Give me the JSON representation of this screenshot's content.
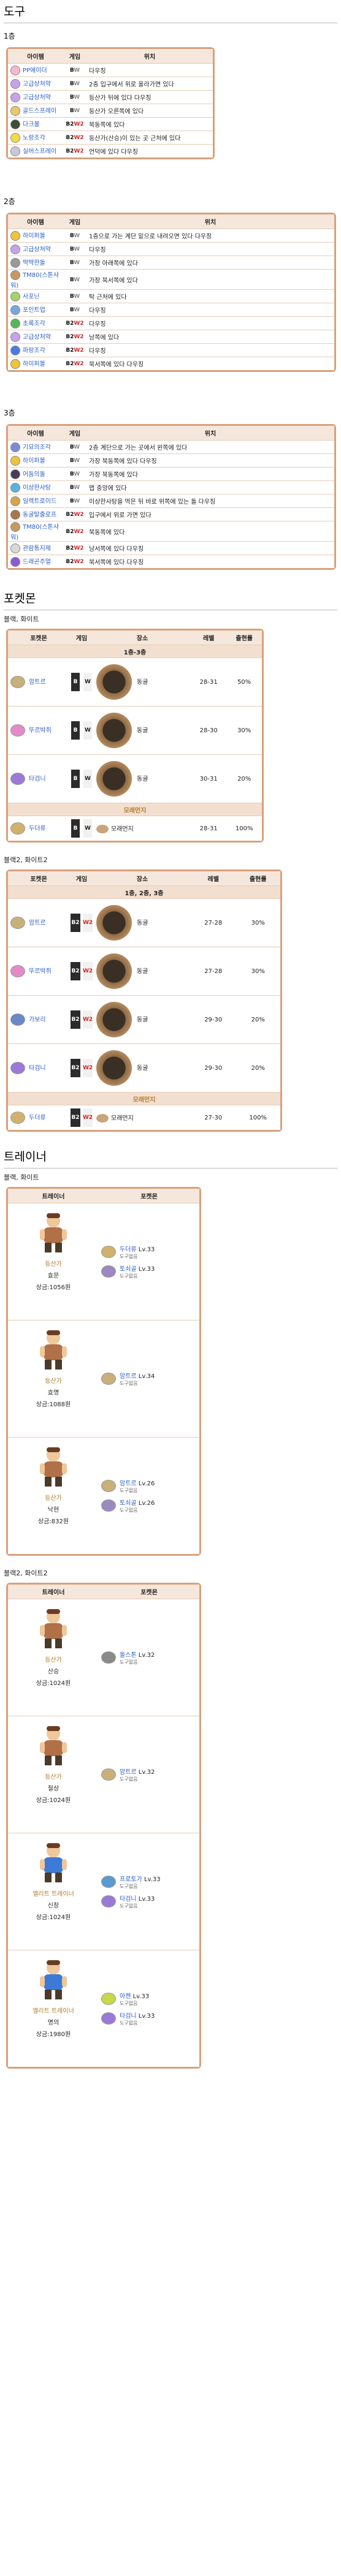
{
  "sections": {
    "items_title": "도구",
    "floor1": "1층",
    "floor2": "2층",
    "floor3": "3층",
    "pokemon_title": "포켓몬",
    "trainer_title": "트레이너",
    "bw": "블랙, 화이트",
    "bw2": "블랙2, 화이트2"
  },
  "item_headers": [
    "아이템",
    "게임",
    "위치"
  ],
  "floor1_items": [
    {
      "name": "PP에이더",
      "icon": "#f7b8d1",
      "games": "BW",
      "loc": "다우징",
      "loc_italic": true
    },
    {
      "name": "고급상처약",
      "icon": "#c7a3e8",
      "games": "BW",
      "loc": "2층 입구에서 위로 올라가면 있다",
      "loc_italic": false
    },
    {
      "name": "고급상처약",
      "icon": "#c7a3e8",
      "games": "BW",
      "loc": "등산가 뒤에 있다 다우징",
      "loc_italic": false
    },
    {
      "name": "골드스프레이",
      "icon": "#e7c86b",
      "games": "BW",
      "loc": "등산가 오른쪽에 있다",
      "loc_italic": false
    },
    {
      "name": "다크볼",
      "icon": "#3f4d3a",
      "games": "B2W2",
      "loc": "북동쪽에 있다",
      "loc_italic": false
    },
    {
      "name": "노랑조각",
      "icon": "#f2dc45",
      "games": "B2W2",
      "loc": "등산가(산승)이 있는 곳 근처에 있다",
      "loc_italic": false
    },
    {
      "name": "실버스프레이",
      "icon": "#c8c8d8",
      "games": "B2W2",
      "loc": "언덕에 있다 다우징",
      "loc_italic": false
    }
  ],
  "floor2_items": [
    {
      "name": "하이퍼볼",
      "icon": "#f1c33b",
      "games": "BW",
      "loc": "1층으로 가는 계단 밑으로 내려오면 있다 다우징"
    },
    {
      "name": "고급상처약",
      "icon": "#c7a3e8",
      "games": "BW",
      "loc": "다우징"
    },
    {
      "name": "딱딱한돌",
      "icon": "#9a9a9a",
      "games": "BW",
      "loc": "가장 아래쪽에 있다"
    },
    {
      "name": "TM80(스톤샤워)",
      "icon": "#c59a61",
      "games": "BW",
      "loc": "가장 북서쪽에 있다"
    },
    {
      "name": "사포닌",
      "icon": "#a3d36a",
      "games": "BW",
      "loc": "탁 근처에 있다"
    },
    {
      "name": "포인트업",
      "icon": "#7aa6e0",
      "games": "BW",
      "loc": "다우징"
    },
    {
      "name": "초록조각",
      "icon": "#56b75a",
      "games": "B2W2",
      "loc": "다우징"
    },
    {
      "name": "고급상처약",
      "icon": "#c7a3e8",
      "games": "B2W2",
      "loc": "남쪽에 있다"
    },
    {
      "name": "파랑조각",
      "icon": "#4a7be0",
      "games": "B2W2",
      "loc": "다우징"
    },
    {
      "name": "하이퍼볼",
      "icon": "#f1c33b",
      "games": "B2W2",
      "loc": "북서쪽에 있다 다우징"
    }
  ],
  "floor3_items": [
    {
      "name": "기묘의조각",
      "icon": "#7c8bd8",
      "games": "BW",
      "loc": "2층 계단으로 가는 곳에서 왼쪽에 있다"
    },
    {
      "name": "하이퍼볼",
      "icon": "#f1c33b",
      "games": "BW",
      "loc": "가장 북동쪽에 있다 다우징"
    },
    {
      "name": "어둠의돌",
      "icon": "#4b3b56",
      "games": "BW",
      "loc": "가장 북동쪽에 있다"
    },
    {
      "name": "이상한사탕",
      "icon": "#5ab1e0",
      "games": "BW",
      "loc": "맵 중앙에 있다"
    },
    {
      "name": "일렉트로이드",
      "icon": "#d9a34a",
      "games": "BW",
      "loc": "이상한사탕을 먹은 뒤 바로 위쪽에 있는 돌 다우징"
    },
    {
      "name": "동굴탈출로프",
      "icon": "#a7764a",
      "games": "B2W2",
      "loc": "입구에서 위로 가면 있다"
    },
    {
      "name": "TM80(스톤샤워)",
      "icon": "#c59a61",
      "games": "B2W2",
      "loc": "북동쪽에 있다"
    },
    {
      "name": "관람통지제",
      "icon": "#d9d9d9",
      "games": "B2W2",
      "loc": "남서쪽에 있다 다우징"
    },
    {
      "name": "드래곤주얼",
      "icon": "#8b5bd6",
      "games": "B2W2",
      "loc": "북서쪽에 있다 다우징"
    }
  ],
  "pokemon_headers": [
    "포켓몬",
    "게임",
    "장소",
    "레벨",
    "출현률"
  ],
  "bw_pokemon": {
    "cat1": "1층-3층",
    "cat2": "모래먼지",
    "rows": [
      {
        "name": "암트르",
        "icon": "#c9b07a",
        "place": "동굴",
        "level": "28-31",
        "rate": "50%"
      },
      {
        "name": "뚜르박쥐",
        "icon": "#e38ac8",
        "place": "동굴",
        "level": "28-30",
        "rate": "30%"
      },
      {
        "name": "타검니",
        "icon": "#9a7ad6",
        "place": "동굴",
        "level": "30-31",
        "rate": "20%"
      }
    ],
    "sand_rows": [
      {
        "name": "두더류",
        "icon": "#d1b26c",
        "place": "모래먼지",
        "level": "28-31",
        "rate": "100%"
      }
    ]
  },
  "bw2_pokemon": {
    "cat1": "1층, 2층, 3층",
    "cat2": "모래먼지",
    "rows": [
      {
        "name": "암트르",
        "icon": "#c9b07a",
        "place": "동굴",
        "level": "27-28",
        "rate": "30%"
      },
      {
        "name": "뚜르박쥐",
        "icon": "#e38ac8",
        "place": "동굴",
        "level": "27-28",
        "rate": "30%"
      },
      {
        "name": "가보리",
        "icon": "#6a87c8",
        "place": "동굴",
        "level": "29-30",
        "rate": "20%"
      },
      {
        "name": "타검니",
        "icon": "#9a7ad6",
        "place": "동굴",
        "level": "29-30",
        "rate": "20%"
      }
    ],
    "sand_rows": [
      {
        "name": "두더류",
        "icon": "#d1b26c",
        "place": "모래먼지",
        "level": "27-30",
        "rate": "100%"
      }
    ]
  },
  "trainer_headers": [
    "트레이너",
    "포켓몬"
  ],
  "bw_trainers": [
    {
      "class": "등산가",
      "name": "효문",
      "prize": "상금:1056원",
      "color": "#b07048",
      "pokes": [
        {
          "name": "두더류",
          "lv": "Lv.33",
          "item": "도구없음",
          "icon": "#d1b26c"
        },
        {
          "name": "토쇠골",
          "lv": "Lv.33",
          "item": "도구없음",
          "icon": "#9a8ac0"
        }
      ]
    },
    {
      "class": "등산가",
      "name": "효명",
      "prize": "상금:1088원",
      "color": "#b07048",
      "pokes": [
        {
          "name": "암트르",
          "lv": "Lv.34",
          "item": "도구없음",
          "icon": "#c9b07a"
        }
      ]
    },
    {
      "class": "등산가",
      "name": "낙현",
      "prize": "상금:832원",
      "color": "#b07048",
      "pokes": [
        {
          "name": "암트르",
          "lv": "Lv.26",
          "item": "도구없음",
          "icon": "#c9b07a"
        },
        {
          "name": "토쇠골",
          "lv": "Lv.26",
          "item": "도구없음",
          "icon": "#9a8ac0"
        }
      ]
    }
  ],
  "bw2_trainers": [
    {
      "class": "등산가",
      "name": "산승",
      "prize": "상금:1024원",
      "color": "#b07048",
      "pokes": [
        {
          "name": "돌스톤",
          "lv": "Lv.32",
          "item": "도구없음",
          "icon": "#8a8a8a"
        }
      ]
    },
    {
      "class": "등산가",
      "name": "철상",
      "prize": "상금:1024원",
      "color": "#b07048",
      "pokes": [
        {
          "name": "암트르",
          "lv": "Lv.32",
          "item": "도구없음",
          "icon": "#c9b07a"
        }
      ]
    },
    {
      "class": "엘리트 트레이너",
      "name": "신창",
      "prize": "상금:1024원",
      "color": "#3c7ad6",
      "pokes": [
        {
          "name": "프로토가",
          "lv": "Lv.33",
          "item": "도구없음",
          "icon": "#5a9ad0"
        },
        {
          "name": "타검니",
          "lv": "Lv.33",
          "item": "도구없음",
          "icon": "#9a7ad6"
        }
      ]
    },
    {
      "class": "엘리트 트레이너",
      "name": "명의",
      "prize": "상금:1980원",
      "color": "#3c7ad6",
      "pokes": [
        {
          "name": "아켄",
          "lv": "Lv.33",
          "item": "도구없음",
          "icon": "#c7d84a"
        },
        {
          "name": "타검니",
          "lv": "Lv.33",
          "item": "도구없음",
          "icon": "#9a7ad6"
        }
      ]
    }
  ]
}
